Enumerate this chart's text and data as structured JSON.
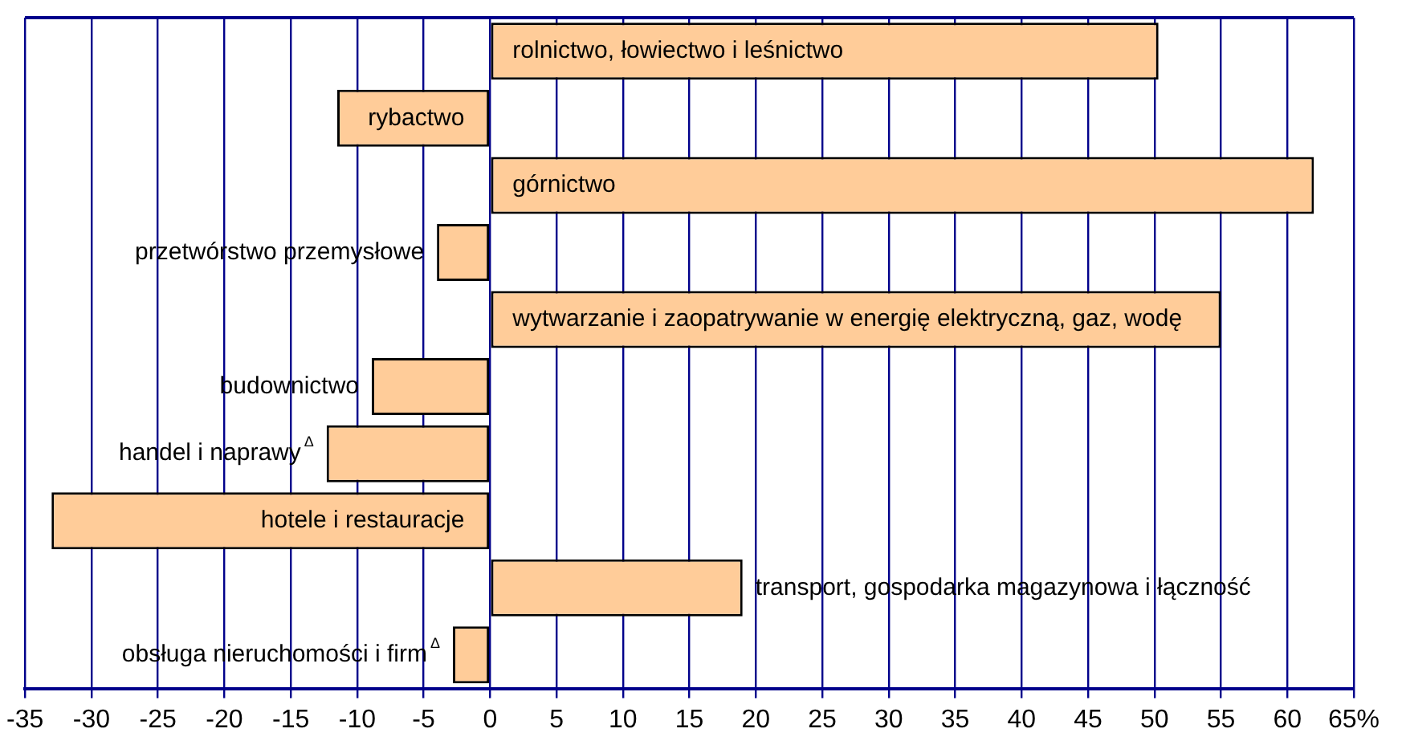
{
  "chart_data": {
    "type": "bar",
    "orientation": "horizontal",
    "categories": [
      "rolnictwo, łowiectwo i leśnictwo",
      "rybactwo",
      "górnictwo",
      "przetwórstwo przemysłowe",
      "wytwarzanie i zaopatrywanie w energię elektryczną, gaz, wodę",
      "budownictwo",
      "handel i naprawy$^{Δ}$",
      "hotele i restauracje",
      "transport, gospodarka magazynowa i łączność",
      "obsługa nieruchomości i firm$^{Δ}$"
    ],
    "values": [
      50.3,
      -11.5,
      62,
      -4,
      55,
      -8.9,
      -12.3,
      -33,
      19,
      -2.8
    ],
    "color": "#ffcc99",
    "xlim": [
      -35,
      65
    ],
    "xticks": [
      -35,
      -30,
      -25,
      -20,
      -15,
      -10,
      -5,
      0,
      5,
      10,
      15,
      20,
      25,
      30,
      35,
      40,
      45,
      50,
      55,
      60,
      {
        "value": 65,
        "label": "65%"
      }
    ],
    "grid": "x"
  }
}
